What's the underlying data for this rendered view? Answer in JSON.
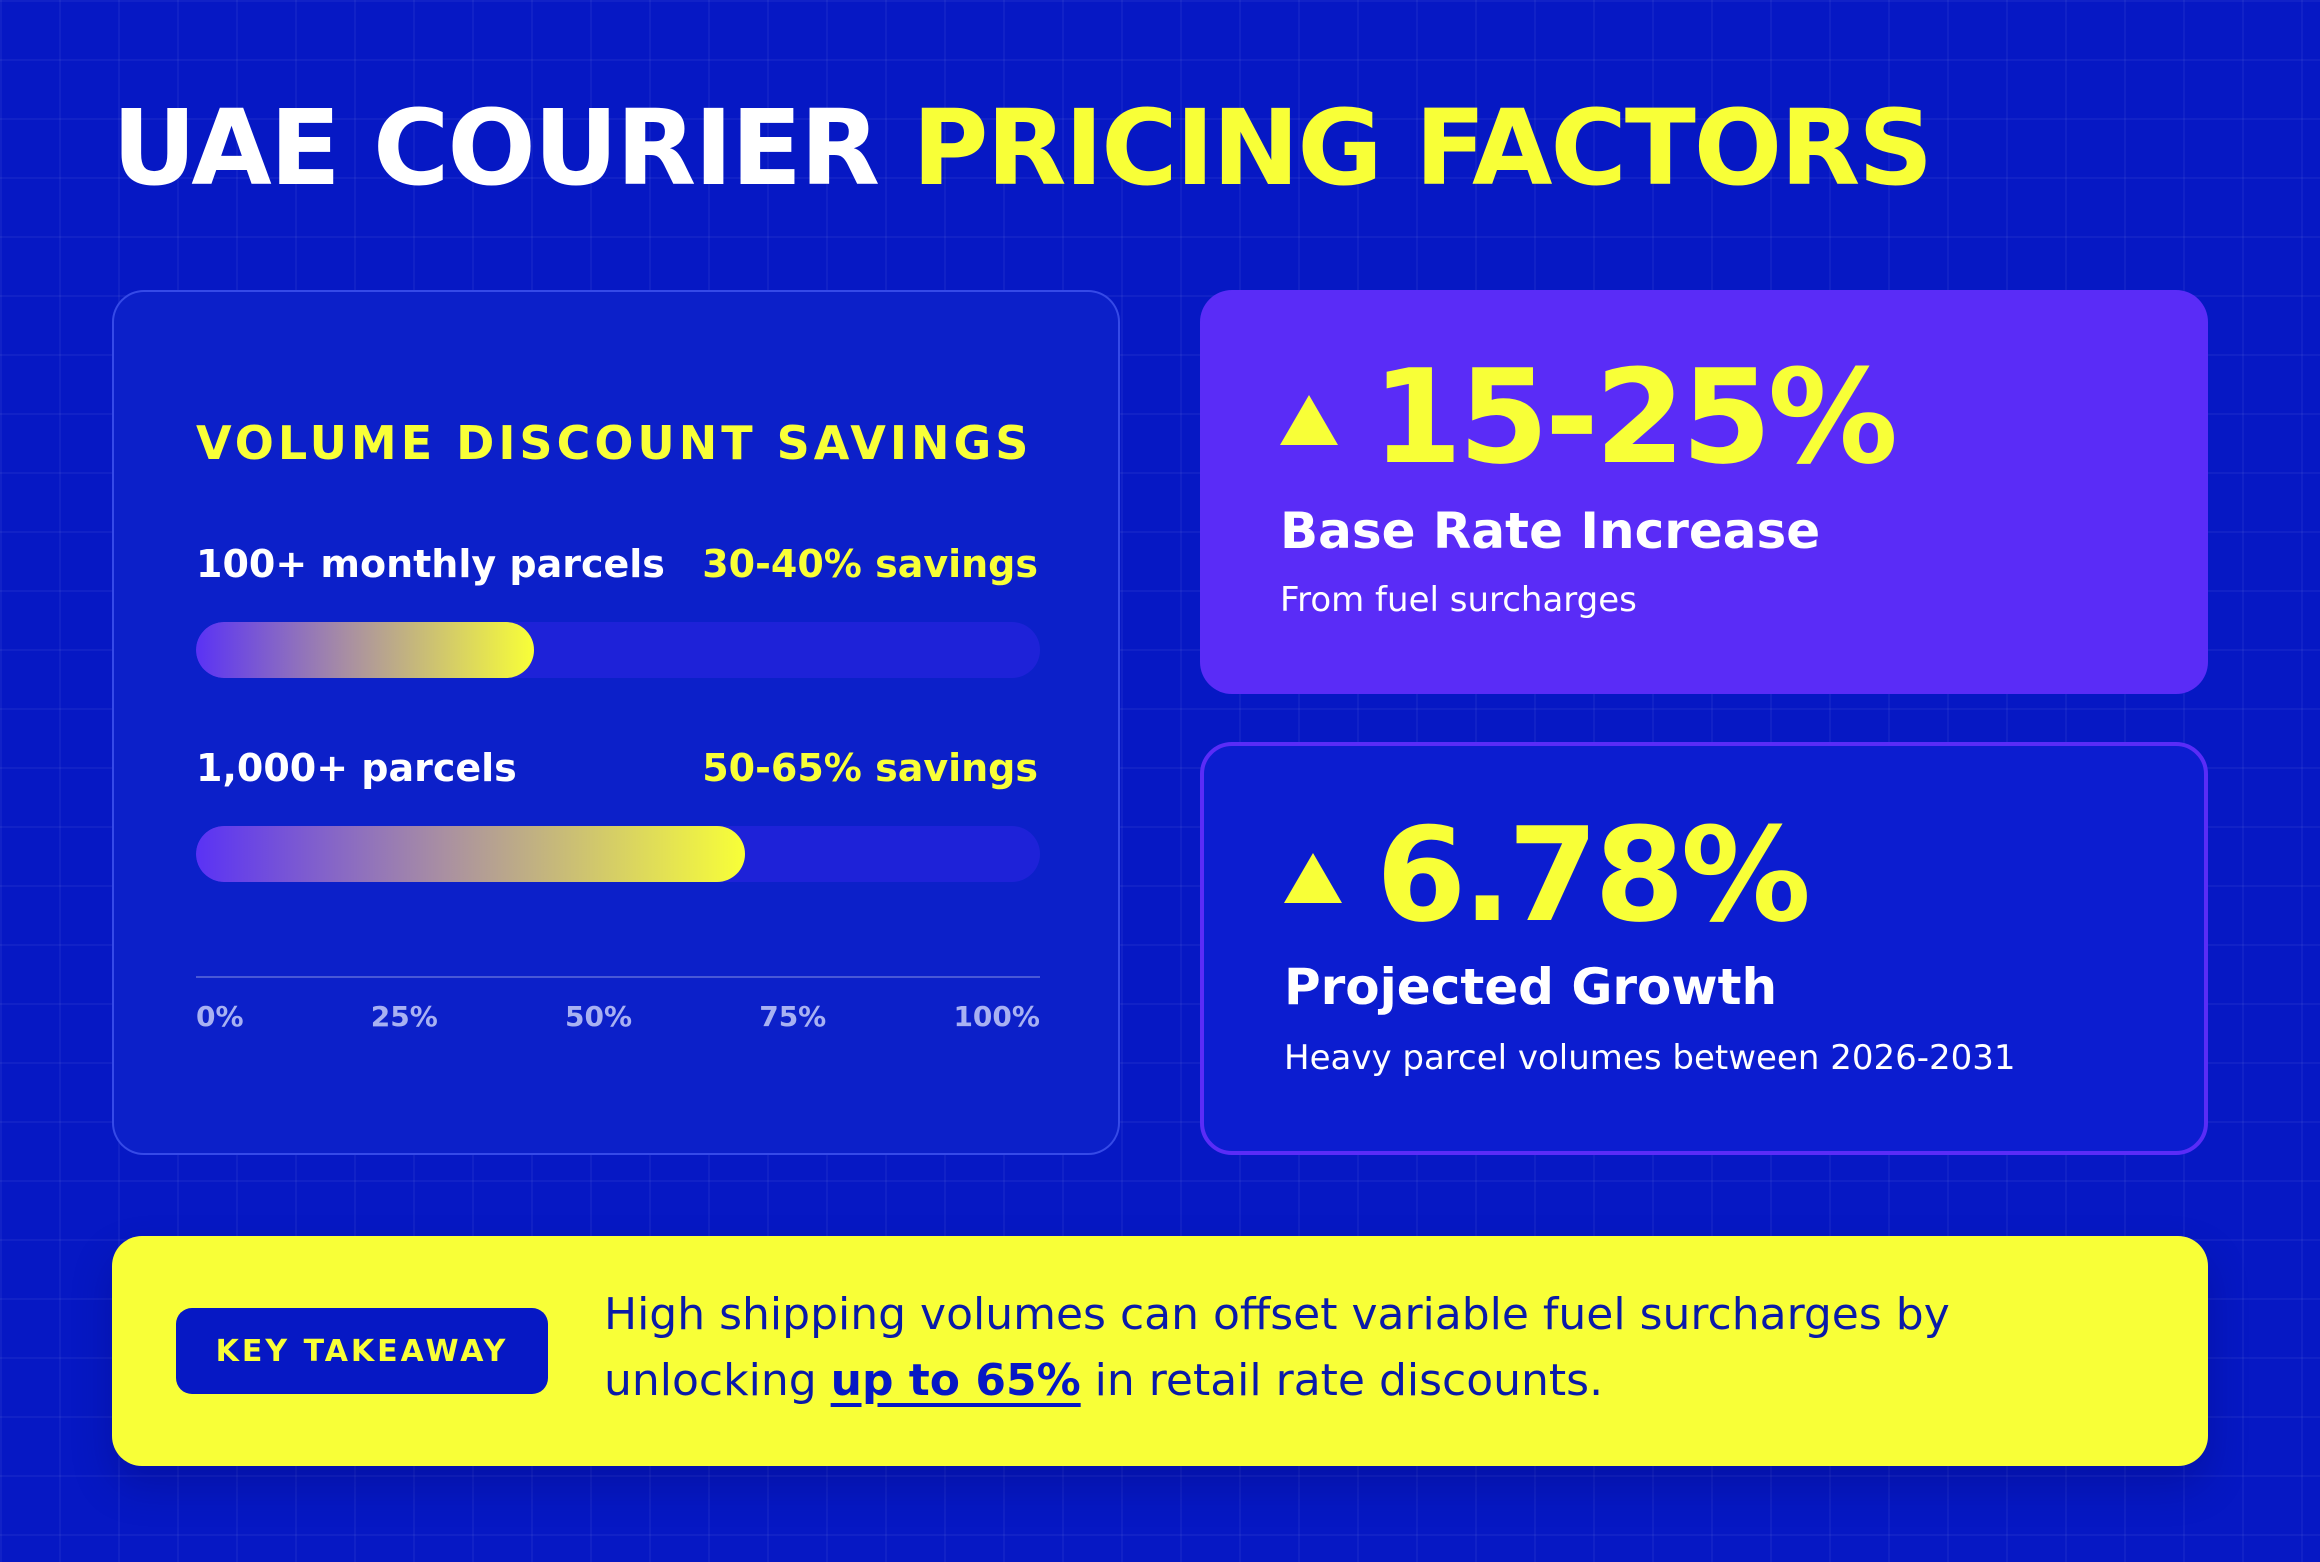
{
  "title": {
    "part1": "UAE COURIER",
    "part2": "PRICING FACTORS"
  },
  "colors": {
    "background": "#0618c4",
    "accent_yellow": "#f8ff37",
    "accent_purple": "#5a2cf7"
  },
  "volume_panel": {
    "heading": "VOLUME DISCOUNT SAVINGS",
    "rows": [
      {
        "label": "100+ monthly parcels",
        "value": "30-40% savings",
        "fill_percent": 40
      },
      {
        "label": "1,000+ parcels",
        "value": "50-65% savings",
        "fill_percent": 65
      }
    ],
    "axis_ticks": [
      "0%",
      "25%",
      "50%",
      "75%",
      "100%"
    ]
  },
  "stats": [
    {
      "icon": "up-triangle-icon",
      "value": "15-25%",
      "title": "Base Rate Increase",
      "desc": "From fuel surcharges"
    },
    {
      "icon": "up-triangle-icon",
      "value": "6.78%",
      "title": "Projected Growth",
      "desc": "Heavy parcel volumes between 2026-2031"
    }
  ],
  "takeaway": {
    "badge": "KEY TAKEAWAY",
    "text_before": "High shipping volumes can offset variable fuel surcharges by unlocking ",
    "highlight": "up to 65%",
    "text_after": " in retail rate discounts."
  }
}
